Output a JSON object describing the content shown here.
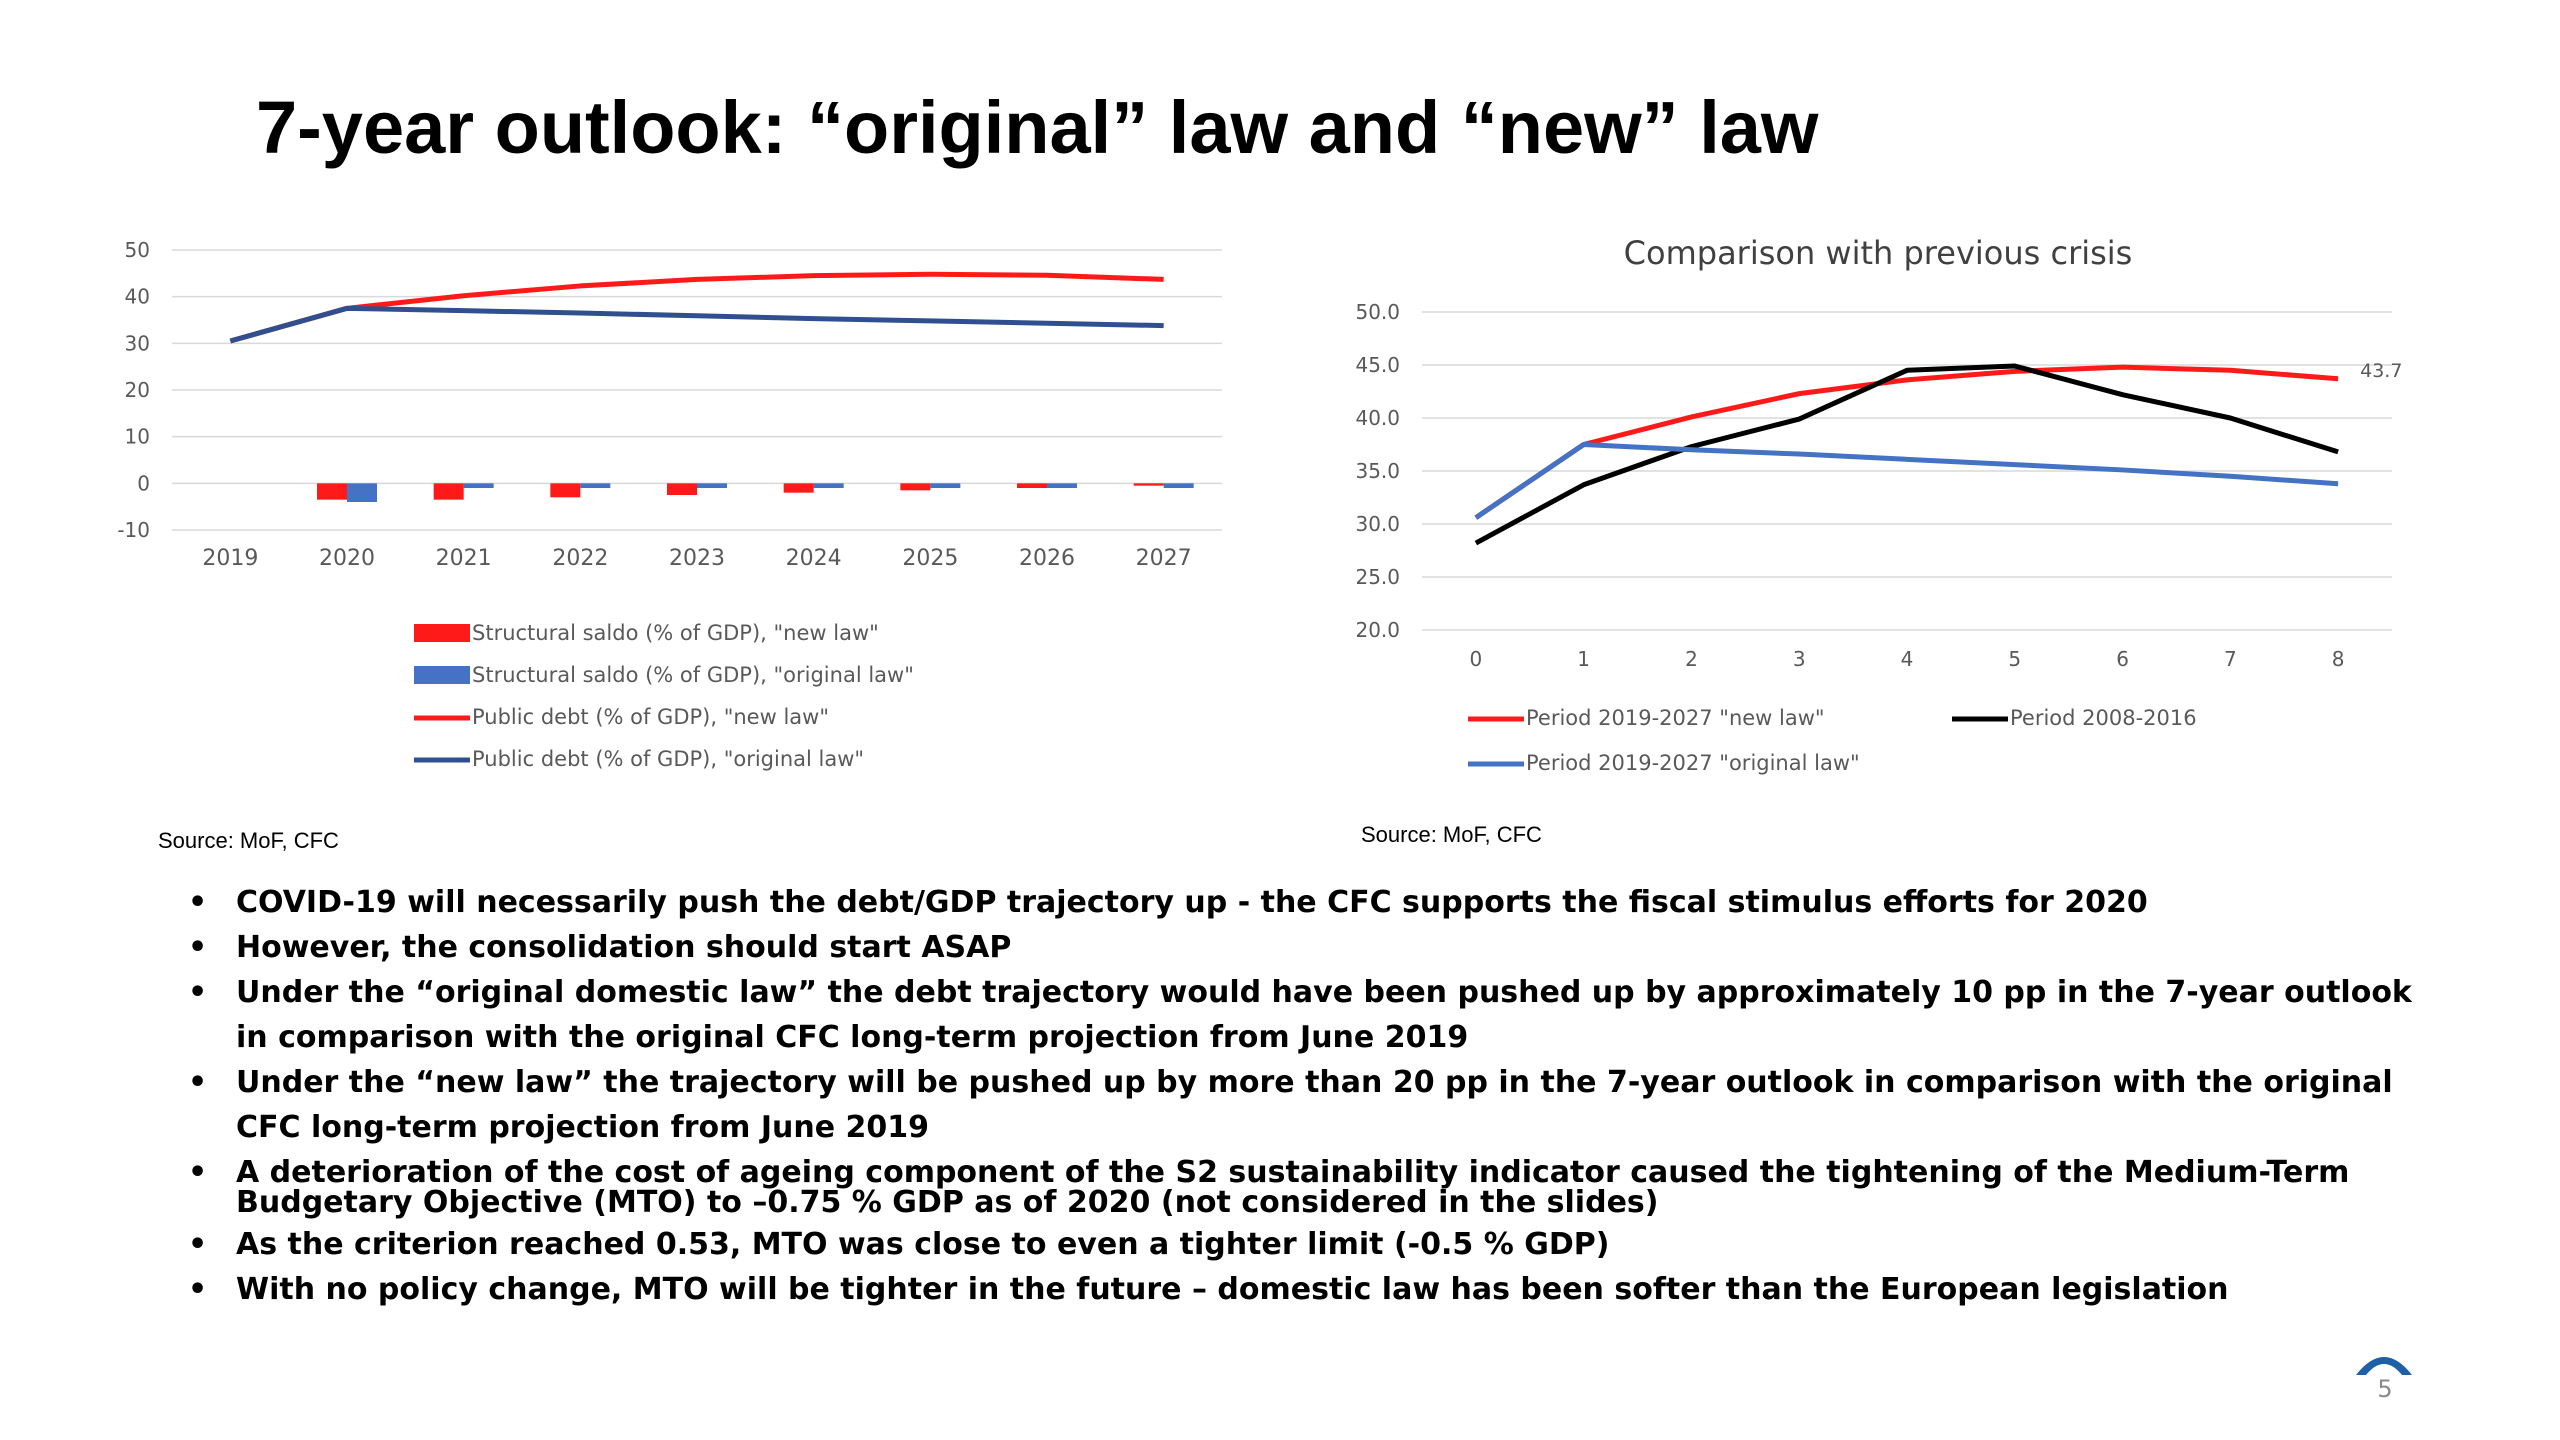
{
  "title": "7-year outlook: “original” law and “new” law",
  "colors": {
    "red": "#ff1a1a",
    "blue": "#4472c4",
    "navy": "#2f4f8f",
    "black": "#000000",
    "grid": "#d9d9d9",
    "axis_text": "#595959"
  },
  "chart_data": [
    {
      "type": "bar+line",
      "title": "",
      "categories": [
        "2019",
        "2020",
        "2021",
        "2022",
        "2023",
        "2024",
        "2025",
        "2026",
        "2027"
      ],
      "ylim": [
        -10,
        50
      ],
      "yticks": [
        "50",
        "40",
        "30",
        "20",
        "10",
        "0",
        "-10"
      ],
      "grid": true,
      "legend_position": "bottom",
      "series": [
        {
          "name": "Structural  saldo (% of GDP), \"new law\"",
          "kind": "bar",
          "color": "#ff1a1a",
          "values": [
            0,
            -3.5,
            -3.5,
            -3,
            -2.5,
            -2,
            -1.5,
            -1,
            -0.5
          ]
        },
        {
          "name": "Structural  saldo (% of GDP), \"original law\"",
          "kind": "bar",
          "color": "#4472c4",
          "values": [
            0,
            -4,
            -1,
            -1,
            -1,
            -1,
            -1,
            -1,
            -1
          ]
        },
        {
          "name": "Public debt (% of GDP), \"new law\"",
          "kind": "line",
          "color": "#ff1a1a",
          "values": [
            30.5,
            37.5,
            40.2,
            42.3,
            43.7,
            44.5,
            44.8,
            44.6,
            43.7
          ]
        },
        {
          "name": "Public debt (% of GDP), \"original law\"",
          "kind": "line",
          "color": "#2f4f8f",
          "values": [
            30.5,
            37.5,
            37.0,
            36.5,
            35.9,
            35.3,
            34.8,
            34.3,
            33.8
          ]
        }
      ],
      "source": "Source: MoF, CFC"
    },
    {
      "type": "line",
      "title": "Comparison with previous crisis",
      "categories": [
        "0",
        "1",
        "2",
        "3",
        "4",
        "5",
        "6",
        "7",
        "8"
      ],
      "ylim": [
        20,
        50
      ],
      "yticks": [
        "50.0",
        "45.0",
        "40.0",
        "35.0",
        "30.0",
        "25.0",
        "20.0"
      ],
      "grid": true,
      "legend_position": "bottom",
      "end_label": "43.7",
      "series": [
        {
          "name": "Period 2019-2027  \"new law\"",
          "color": "#ff1a1a",
          "values": [
            30.6,
            37.5,
            40.1,
            42.3,
            43.6,
            44.4,
            44.8,
            44.5,
            43.7
          ]
        },
        {
          "name": "Period 2008-2016",
          "color": "#000000",
          "values": [
            28.2,
            33.7,
            37.3,
            39.9,
            44.5,
            44.9,
            42.2,
            40.0,
            36.8
          ]
        },
        {
          "name": "Period 2019-2027 \"original law\"",
          "color": "#4472c4",
          "values": [
            30.6,
            37.5,
            37.0,
            36.6,
            36.1,
            35.6,
            35.1,
            34.5,
            33.8
          ]
        }
      ],
      "source": "Source: MoF, CFC"
    }
  ],
  "bullets": [
    "COVID-19 will necessarily push the debt/GDP trajectory up - the CFC supports the fiscal stimulus efforts for 2020",
    "However, the consolidation should start ASAP",
    "Under the “original domestic law” the debt trajectory would have been pushed up by approximately 10 pp in the 7-year outlook in comparison with the original CFC long-term projection from June 2019",
    "Under the “new law” the trajectory will be pushed up by more than 20 pp in the 7-year outlook in comparison with the original CFC long-term projection from June 2019",
    "A deterioration of the cost of ageing component of the S2 sustainability indicator caused the tightening of the Medium-Term Budgetary Objective (MTO) to –0.75 % GDP as of 2020 (not considered in the slides)",
    "As the criterion reached 0.53, MTO was close to even a tighter limit (-0.5 % GDP)",
    "With no policy change, MTO will be tighter in the future – domestic law has been softer than the European legislation"
  ],
  "page_number": "5"
}
